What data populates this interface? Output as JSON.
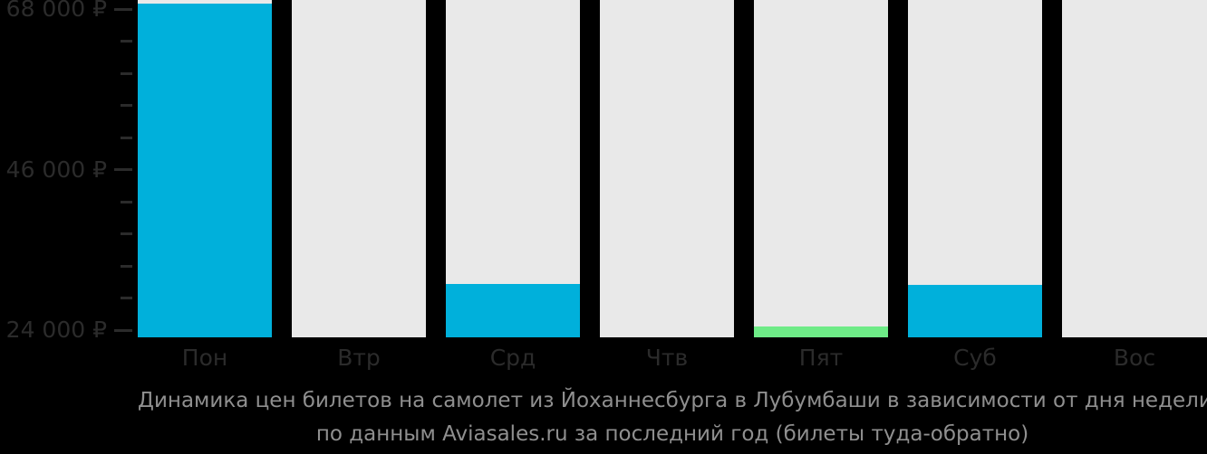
{
  "chart_data": {
    "type": "bar",
    "title": "Динамика цен билетов на самолет из Йоханнесбурга в Лубумбаши в зависимости от дня недели, по данным Aviasales.ru за последний год (билеты туда-обратно)",
    "categories": [
      "Пон",
      "Втр",
      "Срд",
      "Чтв",
      "Пят",
      "Суб",
      "Вос"
    ],
    "category_keys": [
      "mon",
      "tue",
      "wed",
      "thu",
      "fri",
      "sat",
      "sun"
    ],
    "values": [
      68700,
      null,
      30300,
      null,
      24500,
      30200,
      null
    ],
    "value_styles": [
      "default",
      null,
      "default",
      null,
      "lowest",
      "default",
      null
    ],
    "currency": "₽",
    "ylim": [
      24000,
      68000
    ],
    "y_major_ticks": [
      {
        "value": 68000,
        "label": "68 000 ₽"
      },
      {
        "value": 46000,
        "label": "46 000 ₽"
      },
      {
        "value": 24000,
        "label": "24 000 ₽"
      }
    ],
    "y_minor_step": 4400,
    "grid": false,
    "legend": false
  },
  "caption": {
    "line1": "Динамика цен билетов на самолет из Йоханнесбурга в Лубумбаши в зависимости от дня недели,",
    "line2": "по данным Aviasales.ru за последний год (билеты туда-обратно)"
  },
  "colors": {
    "background": "#000000",
    "bar_default": "#00b0db",
    "bar_lowest": "#6eeb87",
    "track": "#e9e9e9",
    "axis_text": "#2b2b2b",
    "tick": "#2b2b2b",
    "caption_text": "#8f8f8f"
  }
}
